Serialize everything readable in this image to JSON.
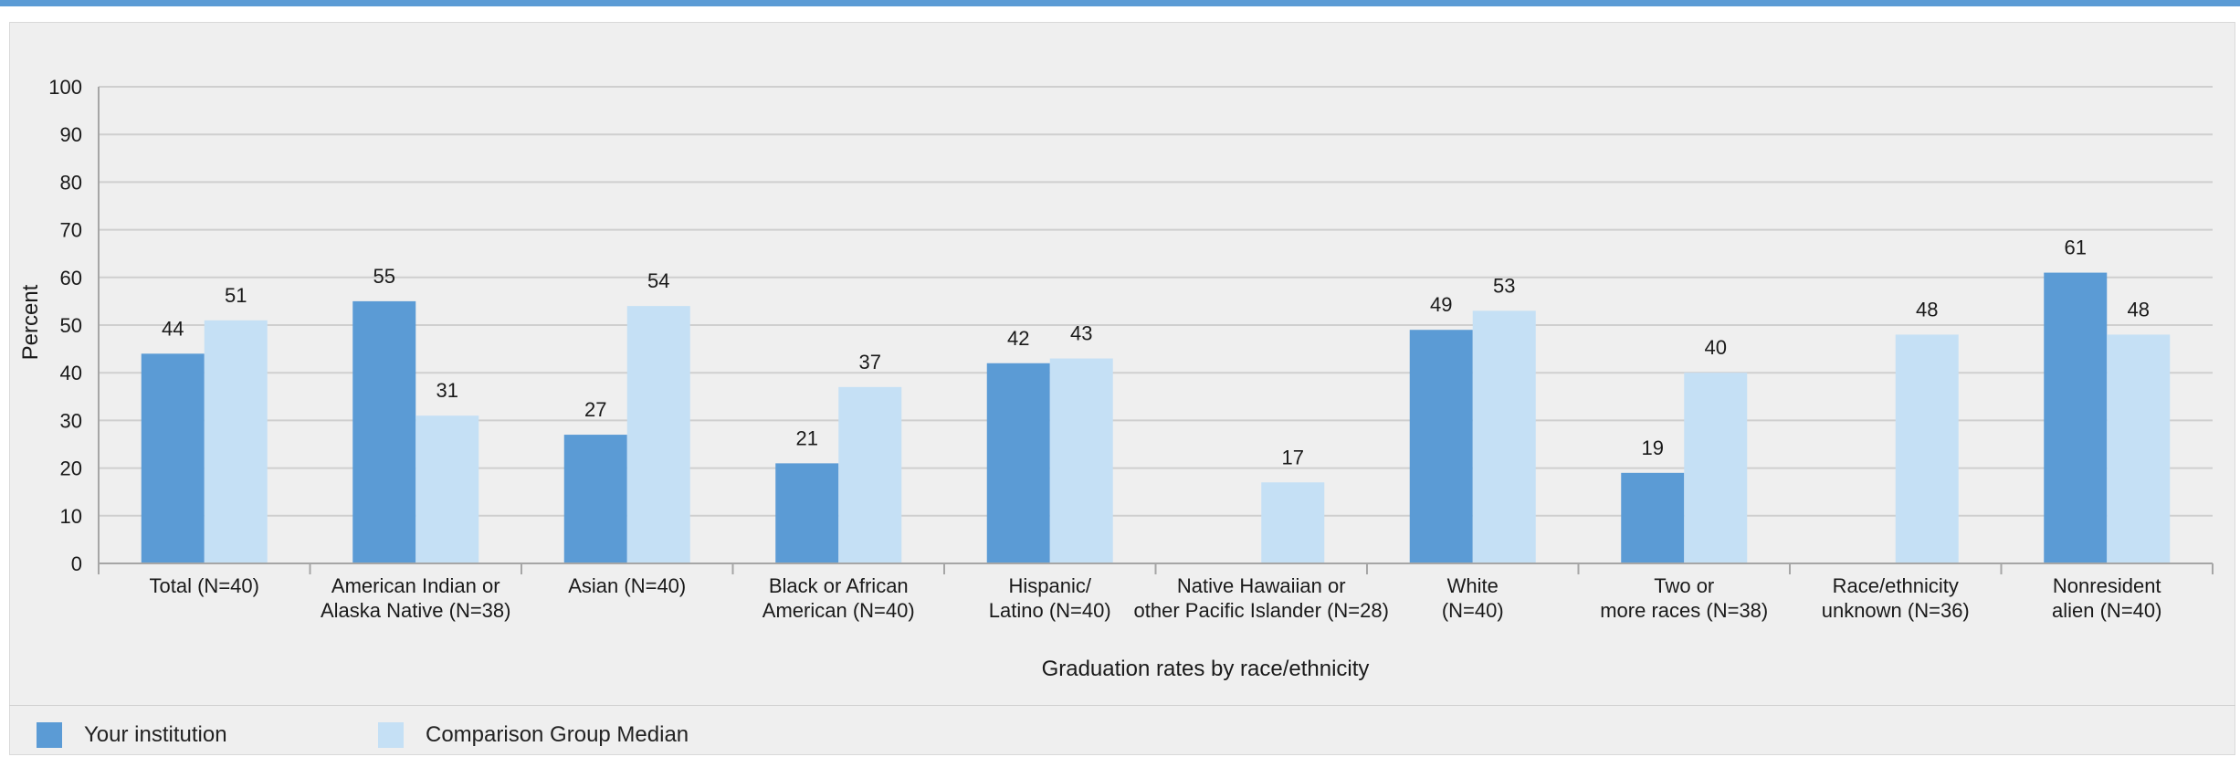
{
  "chart_data": {
    "type": "bar",
    "title": "",
    "xlabel": "Graduation rates by race/ethnicity",
    "ylabel": "Percent",
    "ylim": [
      0,
      100
    ],
    "yticks": [
      0,
      10,
      20,
      30,
      40,
      50,
      60,
      70,
      80,
      90,
      100
    ],
    "grid": true,
    "legend_position": "bottom",
    "categories": [
      [
        "Total (N=40)"
      ],
      [
        "American Indian or",
        "Alaska Native (N=38)"
      ],
      [
        "Asian (N=40)"
      ],
      [
        "Black or African",
        "American (N=40)"
      ],
      [
        "Hispanic/",
        "Latino (N=40)"
      ],
      [
        "Native Hawaiian or",
        "other Pacific Islander (N=28)"
      ],
      [
        "White",
        "(N=40)"
      ],
      [
        "Two or",
        "more races (N=38)"
      ],
      [
        "Race/ethnicity",
        "unknown (N=36)"
      ],
      [
        "Nonresident",
        "alien (N=40)"
      ]
    ],
    "series": [
      {
        "name": "Your institution",
        "color": "#5b9bd5",
        "values": [
          44,
          55,
          27,
          21,
          42,
          null,
          49,
          19,
          null,
          61
        ]
      },
      {
        "name": "Comparison Group Median",
        "color": "#c5e0f5",
        "values": [
          51,
          31,
          54,
          37,
          43,
          17,
          53,
          40,
          48,
          48
        ]
      }
    ]
  }
}
